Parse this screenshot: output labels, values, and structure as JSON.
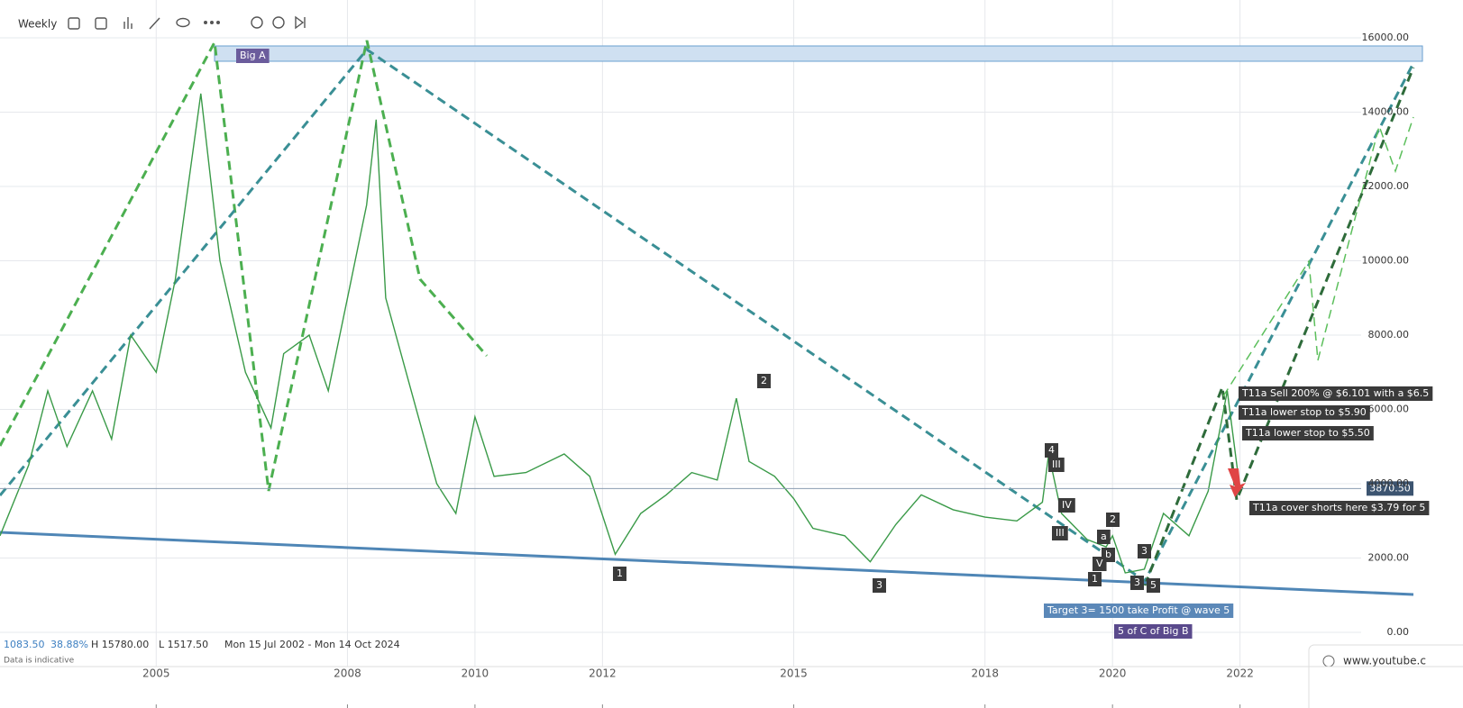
{
  "toolbar": {
    "interval": "Weekly"
  },
  "chart_data": {
    "type": "line",
    "x": [
      2002.55,
      2003.0,
      2003.3,
      2003.6,
      2004.0,
      2004.3,
      2004.6,
      2005.0,
      2005.3,
      2005.7,
      2006.0,
      2006.4,
      2006.8,
      2007.0,
      2007.4,
      2007.7,
      2008.0,
      2008.3,
      2008.45,
      2008.6,
      2009.0,
      2009.4,
      2009.7,
      2010.0,
      2010.3,
      2010.8,
      2011.4,
      2011.8,
      2012.2,
      2012.6,
      2013.0,
      2013.4,
      2013.8,
      2014.1,
      2014.3,
      2014.7,
      2015.0,
      2015.3,
      2015.8,
      2016.2,
      2016.6,
      2017.0,
      2017.5,
      2018.0,
      2018.5,
      2018.9,
      2019.0,
      2019.2,
      2019.6,
      2019.9,
      2020.0,
      2020.2,
      2020.5,
      2020.8,
      2021.2,
      2021.5,
      2021.8,
      2021.95,
      2022.0
    ],
    "values": [
      2600,
      4500,
      6500,
      5000,
      6500,
      5200,
      8000,
      7000,
      9500,
      14500,
      10000,
      7000,
      5500,
      7500,
      8000,
      6500,
      9000,
      11500,
      13800,
      9000,
      6500,
      4000,
      3200,
      5800,
      4200,
      4300,
      4800,
      4200,
      2100,
      3200,
      3700,
      4300,
      4100,
      6300,
      4600,
      4200,
      3600,
      2800,
      2600,
      1900,
      2900,
      3700,
      3300,
      3100,
      3000,
      3500,
      4800,
      3200,
      2500,
      2300,
      2600,
      1600,
      1700,
      3200,
      2600,
      3800,
      6500,
      4500,
      3870
    ],
    "color": "#3a9a48",
    "xlim": [
      2002.55,
      2023.9
    ],
    "ylim": [
      0,
      16000
    ],
    "xticks": [
      2005,
      2008,
      2010,
      2012,
      2015,
      2018,
      2020,
      2022
    ],
    "yticks": [
      {
        "value": 0,
        "label": "0.00"
      },
      {
        "value": 2000,
        "label": "2000.00"
      },
      {
        "value": 4000,
        "label": "4000.00"
      },
      {
        "value": 6000,
        "label": "6000.00"
      },
      {
        "value": 8000,
        "label": "8000.00"
      },
      {
        "value": 10000,
        "label": "10000.00"
      },
      {
        "value": 12000,
        "label": "12000.00"
      },
      {
        "value": 14000,
        "label": "14000.00"
      },
      {
        "value": 16000,
        "label": "16000.00"
      }
    ],
    "grid": true,
    "last_price": {
      "value": 3870.5,
      "label": "3870.50"
    },
    "annotations": [
      "Big A",
      "2",
      "1",
      "3",
      "4",
      "III",
      "IV",
      "III",
      "2",
      "a",
      "b",
      "V",
      "1",
      "3",
      "3",
      "5",
      "Target 3= 1500 take Profit @ wave 5",
      "5 of C of Big B",
      "T11a Sell 200% @ $6.101 with a $6.5",
      "T11a lower stop to $5.90",
      "T11a lower stop to $5.50",
      "T11a cover shorts here $3.79 for 5"
    ]
  },
  "footer": {
    "change": "1083.50",
    "change_pct": "38.88%",
    "high": "H 15780.00",
    "low": "L 1517.50",
    "range": "Mon 15 Jul 2002 - Mon 14 Oct 2024",
    "note": "Data is indicative"
  },
  "overlay": {
    "source": "www.youtube.c"
  }
}
